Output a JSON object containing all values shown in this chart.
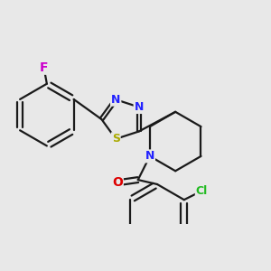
{
  "background_color": "#e8e8e8",
  "bond_color": "#1a1a1a",
  "bond_width": 1.6,
  "atom_labels": {
    "F": {
      "color": "#cc00cc",
      "fontsize": 10
    },
    "N": {
      "color": "#2222ff",
      "fontsize": 10
    },
    "S": {
      "color": "#aaaa00",
      "fontsize": 10
    },
    "O": {
      "color": "#dd0000",
      "fontsize": 10
    },
    "Cl": {
      "color": "#22bb22",
      "fontsize": 10
    }
  },
  "figsize": [
    3.0,
    3.0
  ],
  "dpi": 100
}
